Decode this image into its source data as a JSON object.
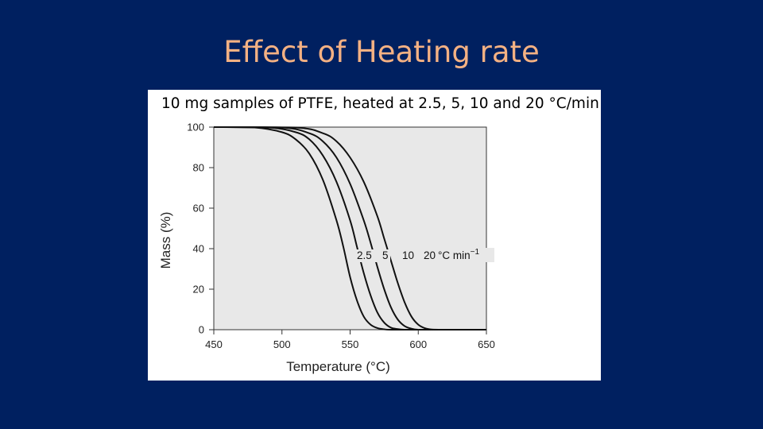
{
  "slide": {
    "title": "Effect of Heating rate",
    "title_color": "#F4B183",
    "background_color": "#002060"
  },
  "figure": {
    "caption": "10 mg samples of PTFE, heated at 2.5, 5, 10 and 20 °C/min"
  },
  "chart_data": {
    "type": "line",
    "title": "",
    "xlabel": "Temperature (°C)",
    "ylabel": "Mass (%)",
    "xlim": [
      450,
      650
    ],
    "ylim": [
      0,
      100
    ],
    "xticks": [
      450,
      500,
      550,
      600,
      650
    ],
    "yticks": [
      0,
      20,
      40,
      60,
      80,
      100
    ],
    "grid": false,
    "series": [
      {
        "name": "2.5",
        "x": [
          450,
          480,
          500,
          510,
          520,
          530,
          540,
          545,
          550,
          555,
          560,
          565,
          570,
          575,
          580,
          600,
          650
        ],
        "y": [
          100,
          99.8,
          97.5,
          94,
          87,
          74,
          54,
          41,
          26,
          14.5,
          6.5,
          2.5,
          0.8,
          0.2,
          0,
          0,
          0
        ]
      },
      {
        "name": "5",
        "x": [
          450,
          490,
          510,
          520,
          530,
          540,
          550,
          555,
          560,
          565,
          570,
          575,
          580,
          585,
          590,
          600,
          650
        ],
        "y": [
          100,
          99.8,
          97.5,
          94,
          86,
          73,
          54,
          41,
          28,
          17,
          8.5,
          3.5,
          1,
          0.3,
          0,
          0,
          0
        ]
      },
      {
        "name": "10",
        "x": [
          450,
          500,
          520,
          530,
          540,
          550,
          560,
          565,
          570,
          575,
          580,
          585,
          590,
          595,
          600,
          610,
          650
        ],
        "y": [
          100,
          99.8,
          97,
          93,
          85,
          72,
          54,
          43,
          31,
          20,
          11,
          5,
          1.8,
          0.5,
          0,
          0,
          0
        ]
      },
      {
        "name": "20",
        "x": [
          450,
          510,
          530,
          540,
          550,
          560,
          570,
          575,
          580,
          585,
          590,
          595,
          600,
          605,
          610,
          620,
          650
        ],
        "y": [
          100,
          99.8,
          97,
          93,
          85,
          73,
          56,
          45,
          34,
          23,
          13.5,
          6.5,
          2.5,
          0.7,
          0.1,
          0,
          0
        ]
      }
    ],
    "series_label_suffix": "°C min",
    "series_label_exponent": "−1",
    "curve_color": "#111111"
  }
}
